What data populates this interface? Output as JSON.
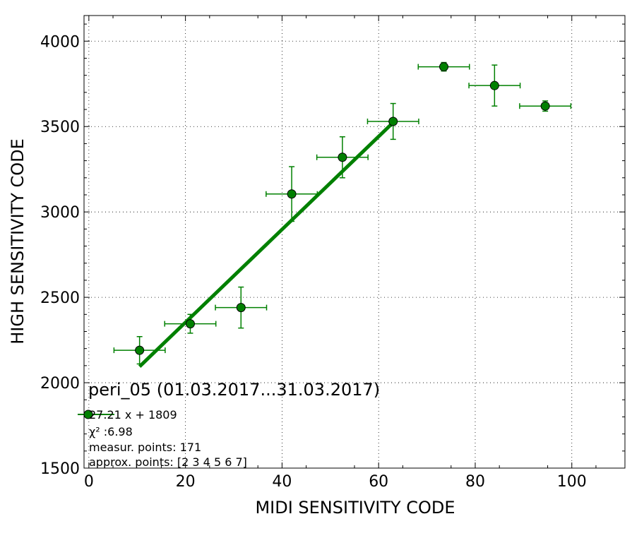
{
  "chart_data": {
    "type": "scatter",
    "title": "peri_05 (01.03.2017...31.03.2017)",
    "xlabel": "MIDI SENSITIVITY CODE",
    "ylabel": "HIGH SENSITIVITY CODE",
    "xlim": [
      -1,
      111
    ],
    "ylim": [
      1500,
      4150
    ],
    "xticks": [
      0,
      20,
      40,
      60,
      80,
      100
    ],
    "yticks": [
      1500,
      2000,
      2500,
      3000,
      3500,
      4000
    ],
    "grid": true,
    "legend_position": "bottom-left",
    "colors": {
      "points": "#008000",
      "point_edge": "#000000",
      "fit": "#008000",
      "errorbars": "#008000"
    },
    "points": [
      {
        "x": 10.5,
        "y": 2190,
        "xerr": 5.3,
        "yerr": 80
      },
      {
        "x": 21.0,
        "y": 2345,
        "xerr": 5.3,
        "yerr": 55
      },
      {
        "x": 31.5,
        "y": 2440,
        "xerr": 5.3,
        "yerr": 120
      },
      {
        "x": 42.0,
        "y": 3105,
        "xerr": 5.3,
        "yerr": 160
      },
      {
        "x": 52.5,
        "y": 3320,
        "xerr": 5.3,
        "yerr": 120
      },
      {
        "x": 63.0,
        "y": 3530,
        "xerr": 5.3,
        "yerr": 105
      },
      {
        "x": 73.5,
        "y": 3850,
        "xerr": 5.3,
        "yerr": 25
      },
      {
        "x": 84.0,
        "y": 3740,
        "xerr": 5.3,
        "yerr": 120
      },
      {
        "x": 94.5,
        "y": 3620,
        "xerr": 5.3,
        "yerr": 30
      }
    ],
    "fit": {
      "slope": 27.21,
      "intercept": 1809,
      "x_range": [
        10.5,
        63.0
      ]
    },
    "legend": [
      "27.21 x + 1809",
      "χ² :6.98",
      "measur. points: 171",
      "approx. points: [2 3 4 5 6 7]"
    ]
  }
}
